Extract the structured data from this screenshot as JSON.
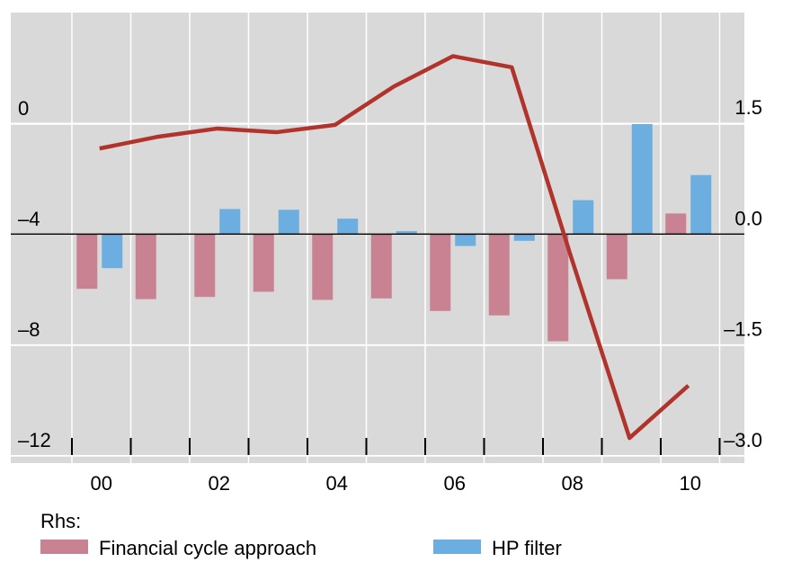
{
  "chart_data": {
    "type": "bar-line",
    "categories": [
      "00",
      null,
      "02",
      null,
      "04",
      null,
      "06",
      null,
      "08",
      null,
      "10"
    ],
    "ylim": [
      -12.26,
      4.03
    ],
    "yticks": [
      0,
      {
        "value": -4,
        "label": "–4"
      },
      {
        "value": -8,
        "label": "–8"
      },
      {
        "value": -12,
        "label": "–12"
      }
    ],
    "y2lim": [
      -3.1,
      3.0
    ],
    "y2ticks": [
      1.5,
      {
        "value": 0,
        "label": "0.0"
      },
      {
        "value": -1.5,
        "label": "–1.5"
      },
      {
        "value": -3,
        "label": "–3.0"
      }
    ],
    "grid": true,
    "legend_title": "Rhs:",
    "series": [
      {
        "name": "Financial cycle approach",
        "color": "#c98292",
        "type": "bar",
        "axis": "y2",
        "values": [
          -0.74,
          -0.88,
          -0.85,
          -0.78,
          -0.89,
          -0.87,
          -1.04,
          -1.1,
          -1.45,
          -0.61,
          0.28
        ]
      },
      {
        "name": "HP filter",
        "color": "#6caee0",
        "type": "bar",
        "axis": "y2",
        "values": [
          -0.46,
          -0.01,
          0.34,
          0.33,
          0.21,
          0.04,
          -0.16,
          -0.09,
          0.46,
          1.49,
          0.8
        ]
      },
      {
        "color": "#b0342b",
        "type": "line",
        "axis": "y2",
        "values": [
          1.16,
          1.32,
          1.43,
          1.38,
          1.48,
          2.0,
          2.41,
          2.26,
          -0.29,
          -2.76,
          -2.05
        ]
      }
    ]
  }
}
